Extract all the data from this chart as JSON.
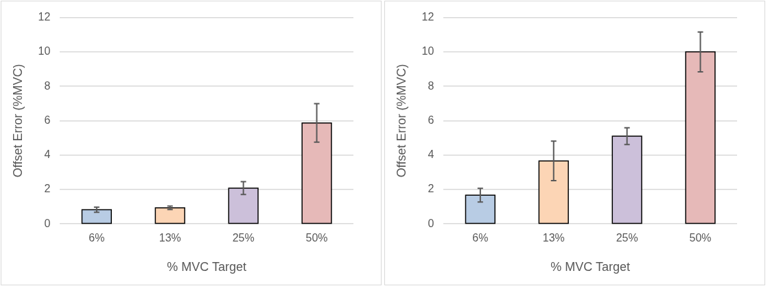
{
  "chart_data": [
    {
      "type": "bar",
      "xlabel": "% MVC Target",
      "ylabel": "Offset Error (%MVC)",
      "categories": [
        "6%",
        "13%",
        "25%",
        "50%"
      ],
      "values": [
        0.82,
        0.93,
        2.08,
        5.87
      ],
      "colors": [
        "#b8cce4",
        "#fcd5b5",
        "#ccc0da",
        "#e6b9b8"
      ],
      "errors": [
        0.15,
        0.1,
        0.37,
        1.12
      ],
      "ylim": [
        0,
        12
      ],
      "yticks": [
        0,
        2,
        4,
        6,
        8,
        10,
        12
      ],
      "grid": "y",
      "legend": false
    },
    {
      "type": "bar",
      "xlabel": "% MVC Target",
      "ylabel": "Offset Error (%MVC)",
      "categories": [
        "6%",
        "13%",
        "25%",
        "50%"
      ],
      "values": [
        1.67,
        3.66,
        5.1,
        10.0
      ],
      "colors": [
        "#b8cce4",
        "#fcd5b5",
        "#ccc0da",
        "#e6b9b8"
      ],
      "errors": [
        0.4,
        1.15,
        0.49,
        1.16
      ],
      "ylim": [
        0,
        12
      ],
      "yticks": [
        0,
        2,
        4,
        6,
        8,
        10,
        12
      ],
      "grid": "y",
      "legend": false
    }
  ]
}
